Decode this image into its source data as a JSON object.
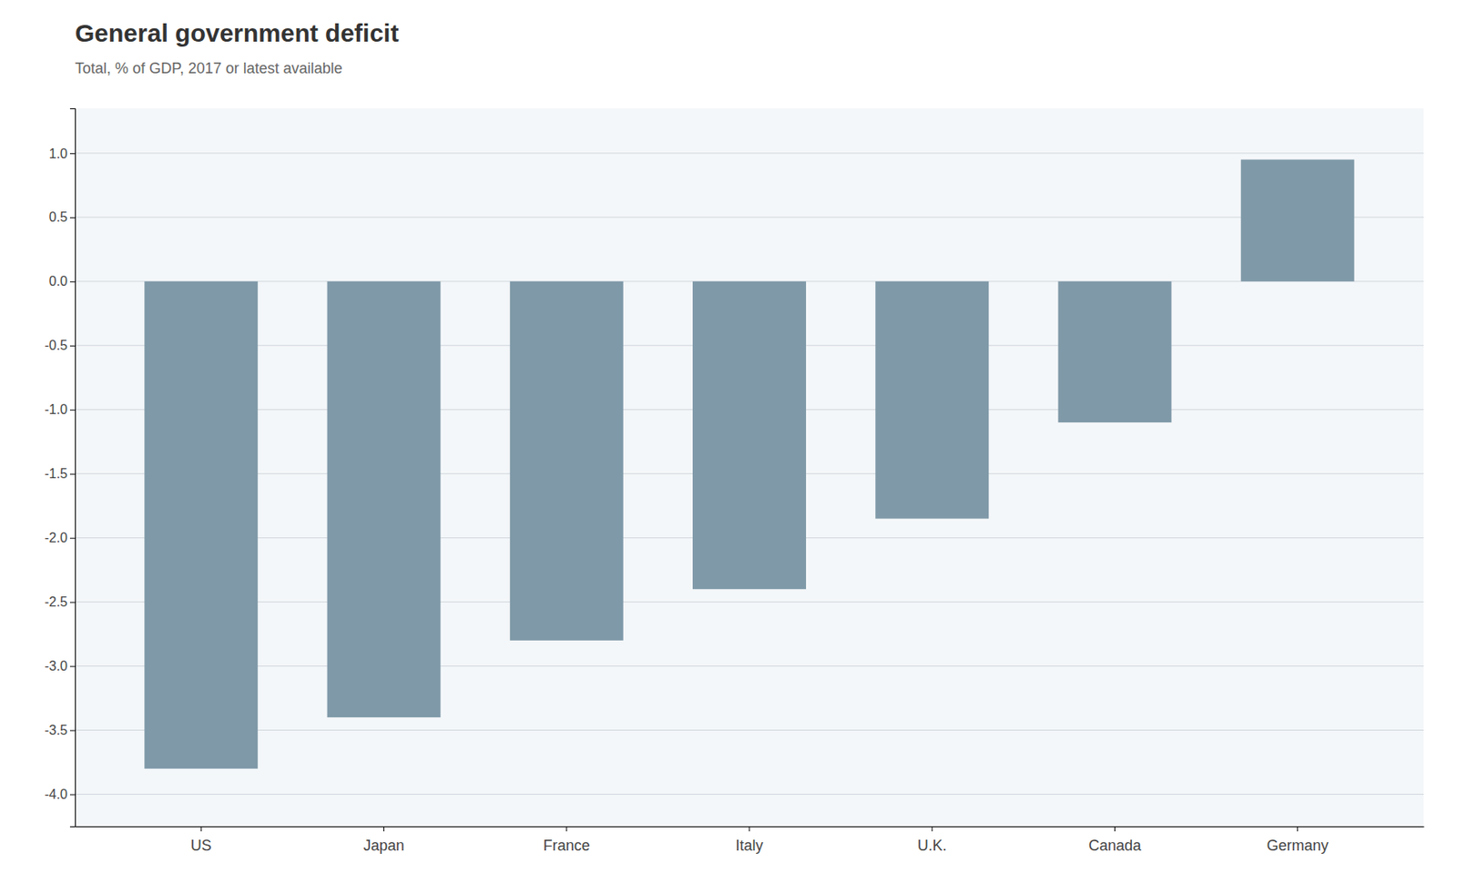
{
  "chart_data": {
    "type": "bar",
    "title": "General government deficit",
    "subtitle": "Total, % of GDP, 2017 or latest available",
    "categories": [
      "US",
      "Japan",
      "France",
      "Italy",
      "U.K.",
      "Canada",
      "Germany"
    ],
    "values": [
      -3.8,
      -3.4,
      -2.8,
      -2.4,
      -1.85,
      -1.1,
      0.95
    ],
    "color": "#7f99a8",
    "ylim": [
      -4.25,
      1.35
    ],
    "yticks": [
      {
        "value": -4.0,
        "label": "-4.0"
      },
      -3.5,
      {
        "value": -3.0,
        "label": "-3.0"
      },
      -2.5,
      {
        "value": -2.0,
        "label": "-2.0"
      },
      -1.5,
      {
        "value": -1.0,
        "label": "-1.0"
      },
      -0.5,
      {
        "value": 0.0,
        "label": "0.0"
      },
      0.5,
      {
        "value": 1.0,
        "label": "1.0"
      }
    ],
    "grid": true
  }
}
